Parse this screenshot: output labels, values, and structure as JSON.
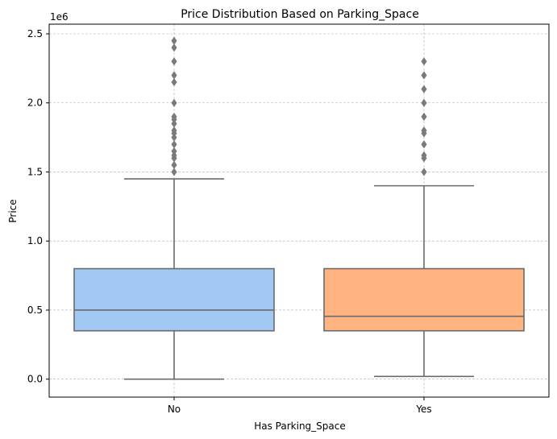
{
  "chart_data": {
    "type": "box",
    "title": "Price Distribution Based on Parking_Space",
    "xlabel": "Has Parking_Space",
    "ylabel": "Price",
    "y_offset_label": "1e6",
    "y_multiplier": 1000000,
    "ylim": [
      -130000,
      2570000
    ],
    "yticks": [
      0,
      500000,
      1000000,
      1500000,
      2000000,
      2500000
    ],
    "ytick_labels": [
      "0.0",
      "0.5",
      "1.0",
      "1.5",
      "2.0",
      "2.5"
    ],
    "grid": true,
    "categories": [
      "No",
      "Yes"
    ],
    "boxes": [
      {
        "category": "No",
        "color": "#a1c9f4",
        "whisker_low": 0,
        "q1": 350000,
        "median": 500000,
        "q3": 800000,
        "whisker_high": 1450000,
        "outliers": [
          1500000,
          1550000,
          1600000,
          1620000,
          1650000,
          1700000,
          1750000,
          1780000,
          1800000,
          1850000,
          1880000,
          1900000,
          2000000,
          2150000,
          2200000,
          2300000,
          2400000,
          2450000
        ]
      },
      {
        "category": "Yes",
        "color": "#ffb482",
        "whisker_low": 20000,
        "q1": 350000,
        "median": 455000,
        "q3": 800000,
        "whisker_high": 1400000,
        "outliers": [
          1500000,
          1600000,
          1620000,
          1700000,
          1780000,
          1800000,
          1900000,
          2000000,
          2100000,
          2200000,
          2300000
        ]
      }
    ]
  },
  "colors": {
    "line": "#6b6b6b",
    "grid": "#b0b0b0",
    "outlier": "#7a7a7a",
    "axis": "#000000"
  }
}
